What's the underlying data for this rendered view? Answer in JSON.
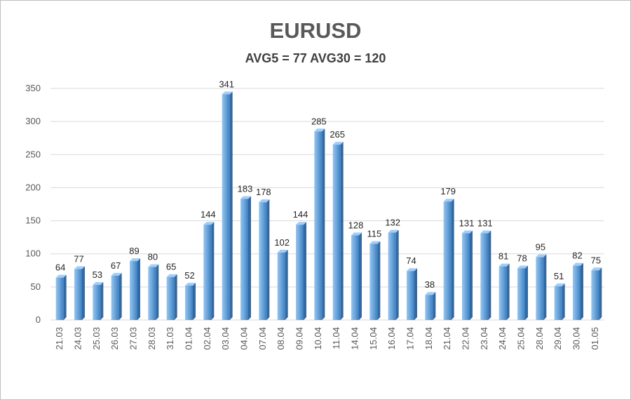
{
  "chart_data": {
    "type": "bar",
    "title": "EURUSD",
    "subtitle": "AVG5 = 77 AVG30 = 120",
    "categories": [
      "21.03",
      "24.03",
      "25.03",
      "26.03",
      "27.03",
      "28.03",
      "31.03",
      "01.04",
      "02.04",
      "03.04",
      "04.04",
      "07.04",
      "08.04",
      "09.04",
      "10.04",
      "11.04",
      "14.04",
      "15.04",
      "16.04",
      "17.04",
      "18.04",
      "21.04",
      "22.04",
      "23.04",
      "24.04",
      "25.04",
      "28.04",
      "29.04",
      "30.04",
      "01.05"
    ],
    "values": [
      64,
      77,
      53,
      67,
      89,
      80,
      65,
      52,
      144,
      341,
      183,
      178,
      102,
      144,
      285,
      265,
      128,
      115,
      132,
      74,
      38,
      179,
      131,
      131,
      81,
      78,
      95,
      51,
      82,
      75
    ],
    "ylim": [
      0,
      350
    ],
    "yticks": [
      0,
      50,
      100,
      150,
      200,
      250,
      300,
      350
    ],
    "grid": true,
    "legend": "none",
    "bar_color": "#5b9bd5"
  }
}
